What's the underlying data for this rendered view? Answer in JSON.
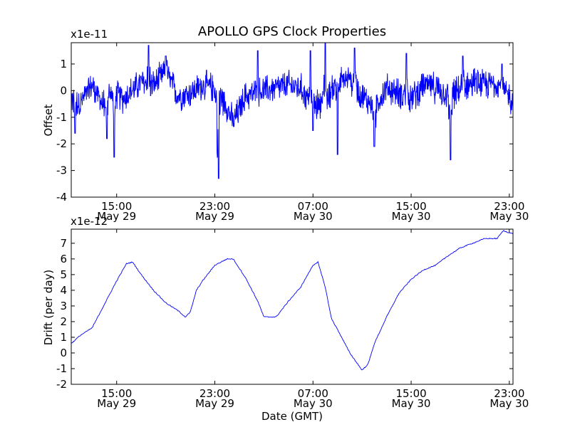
{
  "title": "APOLLO GPS Clock Properties",
  "chart_data": [
    {
      "type": "line",
      "ylabel": "Offset",
      "xlabel": "",
      "scale_note": "x1e-11",
      "ylim": [
        -4,
        1.8
      ],
      "y_ticks": [
        -4,
        -3,
        -2,
        -1,
        0,
        1
      ],
      "x_ticks": [
        {
          "time": "15:00",
          "date": "May 29",
          "h": 15
        },
        {
          "time": "23:00",
          "date": "May 29",
          "h": 23
        },
        {
          "time": "07:00",
          "date": "May 30",
          "h": 31
        },
        {
          "time": "15:00",
          "date": "May 30",
          "h": 39
        },
        {
          "time": "23:00",
          "date": "May 30",
          "h": 47
        }
      ],
      "xlim_hours": [
        11.3,
        47.3
      ],
      "series": [
        {
          "color": "#0000ff",
          "noise_amplitude": 0.45,
          "x_hours": [
            11.3,
            12.0,
            13.0,
            14.0,
            14.5,
            15.5,
            17.0,
            18.0,
            19.0,
            20.0,
            21.0,
            22.0,
            23.0,
            24.0,
            24.5,
            25.5,
            27.0,
            28.0,
            29.0,
            30.0,
            31.0,
            32.0,
            33.0,
            34.0,
            35.0,
            36.0,
            37.0,
            38.0,
            39.0,
            40.0,
            41.0,
            42.0,
            43.0,
            44.0,
            45.0,
            46.0,
            47.3
          ],
          "values": [
            -0.3,
            -0.5,
            0.2,
            -0.6,
            0.0,
            -0.3,
            0.3,
            0.2,
            0.7,
            -0.2,
            -0.1,
            0.2,
            0.1,
            -0.6,
            -1.2,
            -0.2,
            0.0,
            0.1,
            0.2,
            0.1,
            -0.6,
            -0.3,
            0.3,
            0.4,
            -0.2,
            -0.6,
            0.1,
            -0.1,
            -0.3,
            0.2,
            0.1,
            -0.2,
            0.0,
            0.3,
            0.2,
            0.3,
            -0.4
          ]
        }
      ],
      "spikes": [
        {
          "h": 11.6,
          "v": -1.6
        },
        {
          "h": 14.2,
          "v": -1.8
        },
        {
          "h": 14.8,
          "v": -2.5
        },
        {
          "h": 17.6,
          "v": 1.7
        },
        {
          "h": 19.0,
          "v": 1.3
        },
        {
          "h": 23.2,
          "v": -2.3
        },
        {
          "h": 23.3,
          "v": -3.3
        },
        {
          "h": 26.5,
          "v": 1.5
        },
        {
          "h": 30.8,
          "v": 1.5
        },
        {
          "h": 31.0,
          "v": -1.5
        },
        {
          "h": 32.0,
          "v": 1.8
        },
        {
          "h": 33.0,
          "v": -2.4
        },
        {
          "h": 34.4,
          "v": 1.6
        },
        {
          "h": 36.0,
          "v": -2.1
        },
        {
          "h": 38.6,
          "v": 1.4
        },
        {
          "h": 42.2,
          "v": -2.6
        },
        {
          "h": 43.2,
          "v": 1.3
        },
        {
          "h": 46.4,
          "v": 1.0
        }
      ]
    },
    {
      "type": "line",
      "ylabel": "Drift (per day)",
      "xlabel": "Date (GMT)",
      "scale_note": "x1e-12",
      "ylim": [
        -2,
        7.9
      ],
      "y_ticks": [
        -2,
        -1,
        0,
        1,
        2,
        3,
        4,
        5,
        6,
        7
      ],
      "x_ticks": [
        {
          "time": "15:00",
          "date": "May 29",
          "h": 15
        },
        {
          "time": "23:00",
          "date": "May 29",
          "h": 23
        },
        {
          "time": "07:00",
          "date": "May 30",
          "h": 31
        },
        {
          "time": "15:00",
          "date": "May 30",
          "h": 39
        },
        {
          "time": "23:00",
          "date": "May 30",
          "h": 47
        }
      ],
      "xlim_hours": [
        11.3,
        47.3
      ],
      "series": [
        {
          "color": "#0000ff",
          "x_hours": [
            11.3,
            12.0,
            13.0,
            14.0,
            15.0,
            15.8,
            16.3,
            17.0,
            18.0,
            19.0,
            20.0,
            20.6,
            21.0,
            21.5,
            22.0,
            23.0,
            24.0,
            24.5,
            25.5,
            26.5,
            27.0,
            28.0,
            29.0,
            30.0,
            31.0,
            31.4,
            32.0,
            32.5,
            33.0,
            34.0,
            35.0,
            35.5,
            36.0,
            37.0,
            38.0,
            39.0,
            40.0,
            41.0,
            42.0,
            43.0,
            44.0,
            45.0,
            46.0,
            46.5,
            47.3
          ],
          "values": [
            0.6,
            1.1,
            1.6,
            3.1,
            4.6,
            5.7,
            5.8,
            5.0,
            4.0,
            3.2,
            2.7,
            2.3,
            2.6,
            4.0,
            4.6,
            5.6,
            6.0,
            6.0,
            4.8,
            3.3,
            2.3,
            2.3,
            3.3,
            4.2,
            5.6,
            5.8,
            4.2,
            2.2,
            1.5,
            0.0,
            -1.1,
            -0.7,
            0.6,
            2.3,
            3.8,
            4.7,
            5.3,
            5.6,
            6.2,
            6.7,
            7.0,
            7.3,
            7.3,
            7.8,
            7.6
          ]
        }
      ]
    }
  ]
}
